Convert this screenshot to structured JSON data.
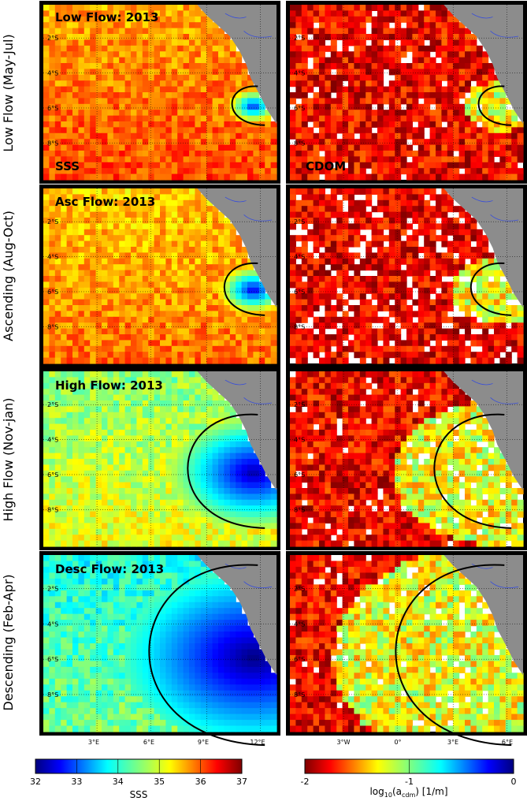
{
  "chart_data": {
    "type": "heatmap",
    "rows": [
      {
        "label": "Low Flow (May-Jul)",
        "title": "Low Flow: 2013",
        "period": "May-Jul"
      },
      {
        "label": "Ascending (Aug-Oct)",
        "title": "Asc Flow: 2013",
        "period": "Aug-Oct"
      },
      {
        "label": "High Flow (Nov-jan)",
        "title": "High Flow: 2013",
        "period": "Nov-jan"
      },
      {
        "label": "Descending (Feb-Apr)",
        "title": "Desc Flow: 2013",
        "period": "Feb-Apr"
      }
    ],
    "columns": [
      {
        "variable": "SSS",
        "panel_label": "SSS"
      },
      {
        "variable": "CDOM",
        "panel_label": "CDOM"
      }
    ],
    "y_ticks": [
      "2°S",
      "4°S",
      "6°S",
      "8°S"
    ],
    "left_x_ticks": [
      "3°E",
      "6°E",
      "9°E",
      "12°E"
    ],
    "right_x_ticks": [
      "3°W",
      "0°",
      "3°E",
      "6°E"
    ],
    "sss_colorbar": {
      "label": "SSS",
      "range": [
        32,
        37
      ],
      "ticks": [
        "32",
        "33",
        "34",
        "35",
        "36",
        "37"
      ]
    },
    "cdom_colorbar": {
      "label": "log10(acdm) [1/m]",
      "label_main": "log",
      "label_sub1": "10",
      "label_paren": "(a",
      "label_sub2": "cdm",
      "label_tail": ") [1/m]",
      "range": [
        -2,
        0
      ],
      "ticks": [
        "-2",
        "-1",
        "0"
      ]
    },
    "sss_mean_by_season": [
      35.8,
      35.6,
      34.8,
      34.2
    ],
    "plume_min_sss_by_season": [
      32.8,
      32.5,
      32.2,
      32.0
    ]
  },
  "colors": {
    "land": "#8c8c8c",
    "contour": "#000000",
    "rivers": "#3a4fd8",
    "missing": "#ffffff"
  }
}
